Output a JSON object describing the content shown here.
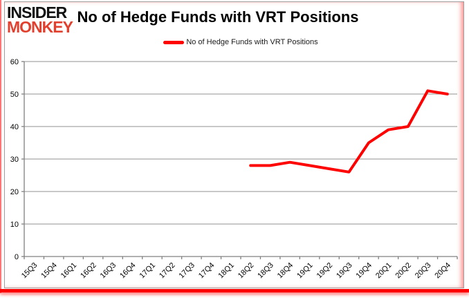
{
  "logo": {
    "top": "INSIDER",
    "bottom": "MONKEY"
  },
  "header": {
    "title": "No of Hedge Funds with VRT Positions"
  },
  "legend": {
    "label": "No of Hedge Funds with VRT Positions"
  },
  "colors": {
    "line": "#ff0000",
    "accent_red": "#ff0000",
    "logo_red": "#e2402e",
    "grid": "#909090",
    "axis": "#808080",
    "text": "#000000"
  },
  "chart_data": {
    "type": "line",
    "title": "No of Hedge Funds with VRT Positions",
    "legend_entries": [
      "No of Hedge Funds with VRT Positions"
    ],
    "legend_position": "top",
    "grid": true,
    "categories": [
      "15Q3",
      "15Q4",
      "16Q1",
      "16Q2",
      "16Q3",
      "16Q4",
      "17Q1",
      "17Q2",
      "17Q3",
      "17Q4",
      "18Q1",
      "18Q2",
      "18Q3",
      "18Q4",
      "19Q1",
      "19Q2",
      "19Q3",
      "19Q4",
      "20Q1",
      "20Q2",
      "20Q3",
      "20Q4"
    ],
    "series": [
      {
        "name": "No of Hedge Funds with VRT Positions",
        "color": "#ff0000",
        "values": [
          null,
          null,
          null,
          null,
          null,
          null,
          null,
          null,
          null,
          null,
          null,
          28,
          28,
          29,
          28,
          27,
          26,
          35,
          39,
          40,
          51,
          50
        ]
      }
    ],
    "ylim": [
      0,
      60
    ],
    "ytick_step": 10,
    "xlabel": "",
    "ylabel": ""
  }
}
